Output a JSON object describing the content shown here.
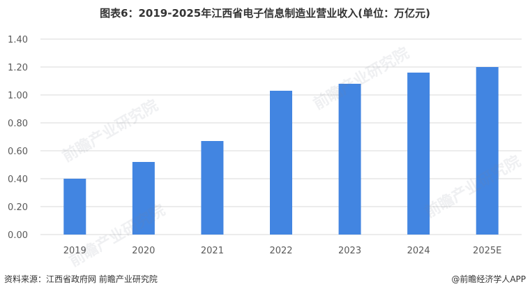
{
  "title": "图表6：2019-2025年江西省电子信息制造业营业收入(单位：万亿元)",
  "footer": {
    "source": "资料来源：江西省政府网 前瞻产业研究院",
    "brand": "@前瞻经济学人APP"
  },
  "watermark_text": "前瞻产业研究院",
  "chart_data": {
    "type": "bar",
    "categories": [
      "2019",
      "2020",
      "2021",
      "2022",
      "2023",
      "2024",
      "2025E"
    ],
    "values": [
      0.4,
      0.52,
      0.67,
      1.03,
      1.08,
      1.16,
      1.2
    ],
    "ylim": [
      0,
      1.4
    ],
    "yticks": [
      "0.00",
      "0.20",
      "0.40",
      "0.60",
      "0.80",
      "1.00",
      "1.20",
      "1.40"
    ],
    "grid": true,
    "bar_color": "#4285e1",
    "title": "",
    "xlabel": "",
    "ylabel": ""
  }
}
